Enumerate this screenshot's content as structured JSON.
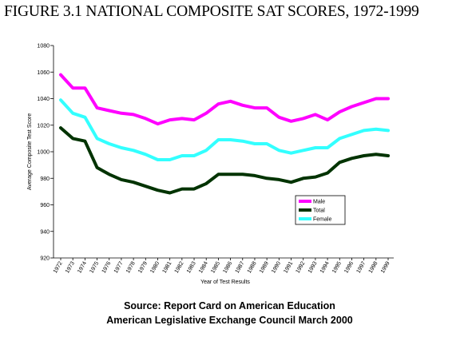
{
  "title": "FIGURE 3.1 NATIONAL COMPOSITE SAT SCORES, 1972-1999",
  "source": {
    "line1": "Source: Report Card on American Education",
    "line2": "American Legislative Exchange Council March 2000"
  },
  "chart_data": {
    "type": "line",
    "xlabel": "Year of Test Results",
    "ylabel": "Average Composite Test Score",
    "ylim": [
      920,
      1080
    ],
    "yticks": [
      920,
      940,
      960,
      980,
      1000,
      1020,
      1040,
      1060,
      1080
    ],
    "categories": [
      "1972",
      "1973",
      "1974",
      "1975",
      "1976",
      "1977",
      "1978",
      "1979",
      "1980",
      "1981",
      "1982",
      "1983",
      "1984",
      "1985",
      "1986",
      "1987",
      "1988",
      "1989",
      "1990",
      "1991",
      "1992",
      "1993",
      "1994",
      "1995",
      "1996",
      "1997",
      "1998",
      "1999"
    ],
    "series": [
      {
        "name": "Male",
        "color": "#ff00ff",
        "values": [
          1058,
          1048,
          1048,
          1033,
          1031,
          1029,
          1028,
          1025,
          1021,
          1024,
          1025,
          1024,
          1029,
          1036,
          1038,
          1035,
          1033,
          1033,
          1026,
          1023,
          1025,
          1028,
          1024,
          1030,
          1034,
          1037,
          1040,
          1040
        ]
      },
      {
        "name": "Total",
        "color": "#003300",
        "values": [
          1018,
          1010,
          1008,
          988,
          983,
          979,
          977,
          974,
          971,
          969,
          972,
          972,
          976,
          983,
          983,
          983,
          982,
          980,
          979,
          977,
          980,
          981,
          984,
          992,
          995,
          997,
          998,
          997
        ]
      },
      {
        "name": "Female",
        "color": "#33ffff",
        "values": [
          1039,
          1029,
          1026,
          1010,
          1006,
          1003,
          1001,
          998,
          994,
          994,
          997,
          997,
          1001,
          1009,
          1009,
          1008,
          1006,
          1006,
          1001,
          999,
          1001,
          1003,
          1003,
          1010,
          1013,
          1016,
          1017,
          1016
        ]
      }
    ],
    "legend_position": "lower-right inside plot",
    "grid": false
  }
}
